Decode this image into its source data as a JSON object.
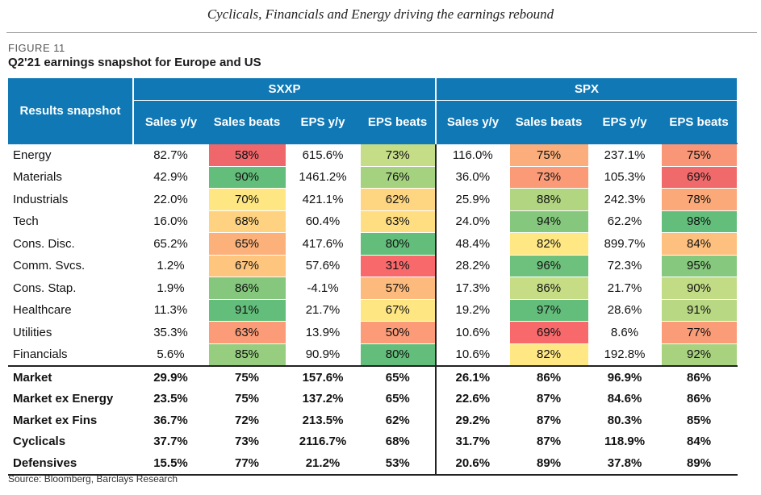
{
  "page_title": "Cyclicals, Financials and Energy driving the earnings rebound",
  "figure_label": "FIGURE 11",
  "figure_title": "Q2'21 earnings snapshot for Europe and US",
  "source": "Source: Bloomberg, Barclays Research",
  "table": {
    "row_header": "Results snapshot",
    "groups": [
      "SXXP",
      "SPX"
    ],
    "columns": [
      "Sales y/y",
      "Sales beats",
      "EPS y/y",
      "EPS beats",
      "Sales y/y",
      "Sales beats",
      "EPS y/y",
      "EPS beats"
    ],
    "sector_rows": [
      {
        "name": "Energy",
        "cells": [
          "82.7%",
          "58%",
          "615.6%",
          "73%",
          "116.0%",
          "75%",
          "237.1%",
          "75%"
        ],
        "colors": [
          "",
          "#f0676b",
          "",
          "#c5dd87",
          "",
          "#fbae7c",
          "",
          "#f99677"
        ]
      },
      {
        "name": "Materials",
        "cells": [
          "42.9%",
          "90%",
          "1461.2%",
          "76%",
          "36.0%",
          "73%",
          "105.3%",
          "69%"
        ],
        "colors": [
          "",
          "#63be7b",
          "",
          "#a5d27f",
          "",
          "#fb9a77",
          "",
          "#f16a6b"
        ]
      },
      {
        "name": "Industrials",
        "cells": [
          "22.0%",
          "70%",
          "421.1%",
          "62%",
          "25.9%",
          "88%",
          "242.3%",
          "78%"
        ],
        "colors": [
          "",
          "#fee783",
          "",
          "#fed580",
          "",
          "#b1d580",
          "",
          "#fba978"
        ]
      },
      {
        "name": "Tech",
        "cells": [
          "16.0%",
          "68%",
          "60.4%",
          "63%",
          "24.0%",
          "94%",
          "62.2%",
          "98%"
        ],
        "colors": [
          "",
          "#fed280",
          "",
          "#ffde82",
          "",
          "#85c87d",
          "",
          "#63be7b"
        ]
      },
      {
        "name": "Cons. Disc.",
        "cells": [
          "65.2%",
          "65%",
          "417.6%",
          "80%",
          "48.4%",
          "82%",
          "899.7%",
          "84%"
        ],
        "colors": [
          "",
          "#fcb17b",
          "",
          "#63be7b",
          "",
          "#ffe884",
          "",
          "#fdc07e"
        ]
      },
      {
        "name": "Comm. Svcs.",
        "cells": [
          "1.2%",
          "67%",
          "57.6%",
          "31%",
          "28.2%",
          "96%",
          "72.3%",
          "95%"
        ],
        "colors": [
          "",
          "#fdc57e",
          "",
          "#f8696b",
          "",
          "#6ec17c",
          "",
          "#86c87d"
        ]
      },
      {
        "name": "Cons. Stap.",
        "cells": [
          "1.9%",
          "86%",
          "-4.1%",
          "57%",
          "17.3%",
          "86%",
          "21.7%",
          "90%"
        ],
        "colors": [
          "",
          "#85c87d",
          "",
          "#fdba7d",
          "",
          "#c6dd86",
          "",
          "#c2dc86"
        ]
      },
      {
        "name": "Healthcare",
        "cells": [
          "11.3%",
          "91%",
          "21.7%",
          "67%",
          "19.2%",
          "97%",
          "28.6%",
          "91%"
        ],
        "colors": [
          "",
          "#63be7b",
          "",
          "#fee783",
          "",
          "#63be7b",
          "",
          "#b8d883"
        ]
      },
      {
        "name": "Utilities",
        "cells": [
          "35.3%",
          "63%",
          "13.9%",
          "50%",
          "10.6%",
          "69%",
          "8.6%",
          "77%"
        ],
        "colors": [
          "",
          "#fb9b77",
          "",
          "#fb9b77",
          "",
          "#f8696b",
          "",
          "#fa9c78"
        ]
      },
      {
        "name": "Financials",
        "cells": [
          "5.6%",
          "85%",
          "90.9%",
          "80%",
          "10.6%",
          "82%",
          "192.8%",
          "92%"
        ],
        "colors": [
          "",
          "#96cd7e",
          "",
          "#63be7b",
          "",
          "#ffe884",
          "",
          "#a9d27f"
        ]
      }
    ],
    "aggregate_rows": [
      {
        "name": "Market",
        "cells": [
          "29.9%",
          "75%",
          "157.6%",
          "65%",
          "26.1%",
          "86%",
          "96.9%",
          "86%"
        ]
      },
      {
        "name": "Market ex Energy",
        "cells": [
          "23.5%",
          "75%",
          "137.2%",
          "65%",
          "22.6%",
          "87%",
          "84.6%",
          "86%"
        ]
      },
      {
        "name": "Market ex Fins",
        "cells": [
          "36.7%",
          "72%",
          "213.5%",
          "62%",
          "29.2%",
          "87%",
          "80.3%",
          "85%"
        ]
      },
      {
        "name": "Cyclicals",
        "cells": [
          "37.7%",
          "73%",
          "2116.7%",
          "68%",
          "31.7%",
          "87%",
          "118.9%",
          "84%"
        ]
      },
      {
        "name": "Defensives",
        "cells": [
          "15.5%",
          "77%",
          "21.2%",
          "53%",
          "20.6%",
          "89%",
          "37.8%",
          "89%"
        ]
      }
    ]
  }
}
